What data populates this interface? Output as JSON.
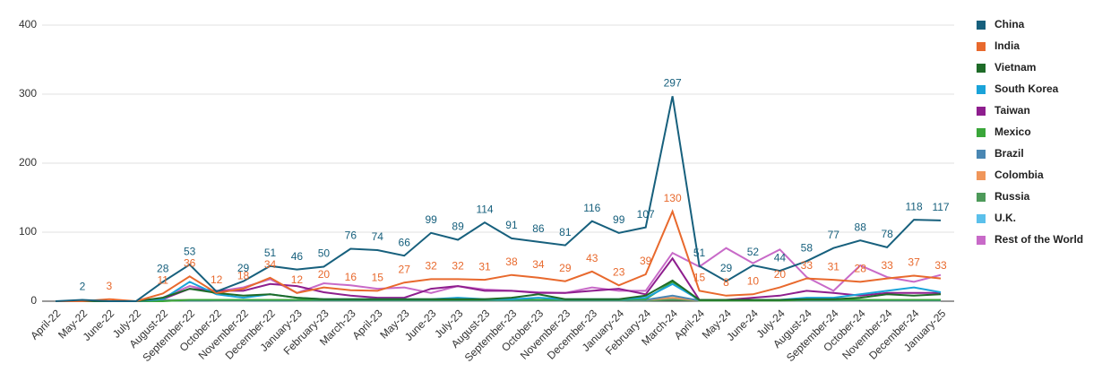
{
  "chart_data": {
    "type": "line",
    "categories": [
      "April-22",
      "May-22",
      "June-22",
      "July-22",
      "August-22",
      "September-22",
      "October-22",
      "November-22",
      "December-22",
      "January-23",
      "February-23",
      "March-23",
      "April-23",
      "May-23",
      "June-23",
      "July-23",
      "August-23",
      "September-23",
      "October-23",
      "November-23",
      "December-23",
      "January-24",
      "February-24",
      "March-24",
      "April-24",
      "May-24",
      "June-24",
      "July-24",
      "August-24",
      "September-24",
      "October-24",
      "November-24",
      "December-24",
      "January-25"
    ],
    "ylim": [
      0,
      400
    ],
    "yticks": [
      0,
      100,
      200,
      300,
      400
    ],
    "grid": true,
    "legend": "right",
    "series": [
      {
        "name": "China",
        "color": "#17607d",
        "values": [
          0,
          2,
          0,
          0,
          28,
          53,
          14,
          29,
          51,
          46,
          50,
          76,
          74,
          66,
          99,
          89,
          114,
          91,
          86,
          81,
          116,
          99,
          107,
          297,
          51,
          29,
          52,
          44,
          58,
          77,
          88,
          78,
          118,
          117
        ],
        "value_labels": [
          null,
          "2",
          null,
          null,
          "28",
          "53",
          null,
          "29",
          "51",
          "46",
          "50",
          "76",
          "74",
          "66",
          "99",
          "89",
          "114",
          "91",
          "86",
          "81",
          "116",
          "99",
          "107",
          "297",
          "51",
          "29",
          "52",
          "44",
          "58",
          "77",
          "88",
          "78",
          "118",
          "117"
        ]
      },
      {
        "name": "India",
        "color": "#e8692d",
        "values": [
          0,
          0,
          3,
          0,
          11,
          36,
          12,
          18,
          34,
          12,
          20,
          16,
          15,
          27,
          32,
          32,
          31,
          38,
          34,
          29,
          43,
          23,
          39,
          130,
          15,
          8,
          10,
          20,
          33,
          31,
          28,
          33,
          37,
          33
        ],
        "value_labels": [
          null,
          null,
          "3",
          null,
          "11",
          "36",
          "12",
          "18",
          "34",
          "12",
          "20",
          "16",
          "15",
          "27",
          "32",
          "32",
          "31",
          "38",
          "34",
          "29",
          "43",
          "23",
          "39",
          "130",
          "15",
          "8",
          "10",
          "20",
          "33",
          "31",
          "28",
          "33",
          "37",
          "33"
        ]
      },
      {
        "name": "Vietnam",
        "color": "#1e6b28",
        "values": [
          0,
          0,
          0,
          0,
          5,
          18,
          12,
          8,
          10,
          5,
          3,
          3,
          3,
          3,
          3,
          3,
          3,
          5,
          10,
          3,
          3,
          3,
          8,
          30,
          2,
          2,
          2,
          2,
          3,
          3,
          5,
          10,
          8,
          10
        ]
      },
      {
        "name": "South Korea",
        "color": "#1aa3d9",
        "values": [
          0,
          0,
          0,
          0,
          3,
          28,
          10,
          5,
          10,
          5,
          3,
          3,
          3,
          3,
          3,
          5,
          3,
          3,
          5,
          3,
          3,
          3,
          5,
          25,
          2,
          2,
          2,
          2,
          5,
          5,
          10,
          15,
          20,
          13
        ]
      },
      {
        "name": "Taiwan",
        "color": "#8e1e8e",
        "values": [
          0,
          0,
          0,
          0,
          3,
          18,
          15,
          15,
          25,
          22,
          13,
          8,
          5,
          5,
          18,
          22,
          15,
          15,
          12,
          12,
          15,
          18,
          10,
          62,
          2,
          2,
          5,
          8,
          15,
          12,
          8,
          12,
          12,
          12
        ]
      },
      {
        "name": "Mexico",
        "color": "#3aa63a",
        "values": [
          0,
          0,
          0,
          0,
          0,
          2,
          2,
          2,
          2,
          2,
          2,
          2,
          2,
          2,
          2,
          2,
          2,
          2,
          2,
          2,
          2,
          2,
          3,
          28,
          1,
          1,
          1,
          1,
          2,
          2,
          2,
          2,
          2,
          2
        ]
      },
      {
        "name": "Brazil",
        "color": "#4a87b3",
        "values": [
          0,
          0,
          0,
          0,
          1,
          1,
          1,
          1,
          1,
          1,
          1,
          1,
          1,
          1,
          1,
          1,
          1,
          1,
          1,
          1,
          1,
          1,
          2,
          8,
          1,
          1,
          1,
          1,
          1,
          1,
          1,
          1,
          1,
          1
        ]
      },
      {
        "name": "Colombia",
        "color": "#f0965a",
        "values": [
          0,
          0,
          0,
          0,
          1,
          2,
          1,
          1,
          2,
          1,
          1,
          1,
          1,
          1,
          1,
          1,
          1,
          1,
          1,
          1,
          1,
          1,
          2,
          5,
          1,
          1,
          1,
          1,
          1,
          1,
          1,
          1,
          1,
          1
        ]
      },
      {
        "name": "Russia",
        "color": "#4d9a5a",
        "values": [
          0,
          0,
          0,
          0,
          1,
          1,
          1,
          1,
          1,
          1,
          1,
          1,
          1,
          1,
          1,
          1,
          1,
          1,
          1,
          1,
          1,
          1,
          1,
          2,
          1,
          1,
          1,
          1,
          1,
          1,
          1,
          1,
          1,
          1
        ]
      },
      {
        "name": "U.K.",
        "color": "#5bc0eb",
        "values": [
          0,
          0,
          0,
          0,
          2,
          2,
          2,
          2,
          2,
          2,
          2,
          2,
          2,
          2,
          2,
          2,
          2,
          2,
          2,
          2,
          2,
          2,
          2,
          3,
          2,
          2,
          2,
          2,
          2,
          2,
          2,
          2,
          2,
          2
        ]
      },
      {
        "name": "Rest of the World",
        "color": "#c86ac8",
        "values": [
          0,
          0,
          0,
          0,
          5,
          22,
          14,
          20,
          32,
          12,
          26,
          23,
          18,
          20,
          12,
          22,
          17,
          15,
          13,
          12,
          20,
          15,
          15,
          70,
          50,
          77,
          55,
          75,
          35,
          15,
          52,
          35,
          28,
          38
        ]
      }
    ]
  }
}
